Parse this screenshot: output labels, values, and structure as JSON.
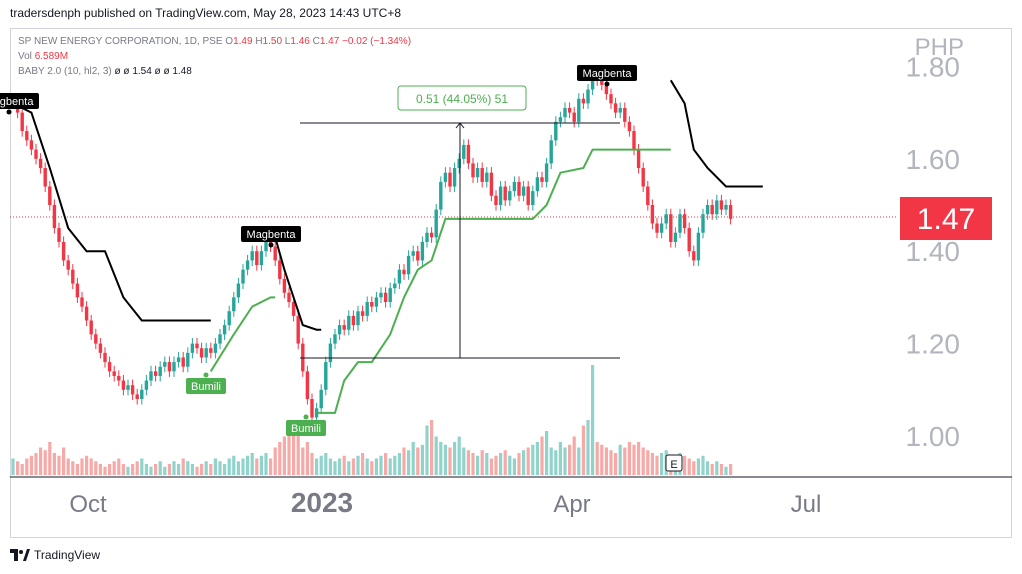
{
  "header": {
    "publisher": "tradersdenph published on TradingView.com, May 28, 2023 14:43 UTC+8"
  },
  "legend": {
    "symbol": "SP NEW ENERGY CORPORATION, 1D, PSE",
    "o_label": "O",
    "o": "1.49",
    "h_label": "H",
    "h": "1.50",
    "l_label": "L",
    "l": "1.46",
    "c_label": "C",
    "c": "1.47",
    "change": "−0.02 (−1.34%)",
    "vol_label": "Vol",
    "vol": "6.589M",
    "indicator": "BABY 2.0 (10, hl2, 3)",
    "ind_vals": "ø ø 1.54 ø ø 1.48"
  },
  "currency": "PHP",
  "footer": {
    "brand": "TradingView"
  },
  "colors": {
    "up": "#26a69a",
    "down": "#f23645",
    "supertrend_down": "#000000",
    "supertrend_up": "#4caf50",
    "price_tag": "#f23645"
  },
  "chart_data": {
    "type": "candlestick",
    "y_ticks": [
      "1.00",
      "1.20",
      "1.40",
      "1.60",
      "1.80"
    ],
    "x_ticks": [
      "Oct",
      "2023",
      "Apr",
      "Jul"
    ],
    "last_price": "1.47",
    "measure_label": "0.51 (44.05%) 51",
    "labels": [
      {
        "text": "Magbenta",
        "type": "sell",
        "bar": 0
      },
      {
        "text": "Magbenta",
        "type": "sell",
        "bar": 57
      },
      {
        "text": "Magbenta",
        "type": "sell",
        "bar": 143
      },
      {
        "text": "Bumili",
        "type": "buy",
        "bar": 43
      },
      {
        "text": "Bumili",
        "type": "buy",
        "bar": 66
      }
    ],
    "volume_flag": "E",
    "close": [
      1.72,
      1.7,
      1.66,
      1.64,
      1.62,
      1.6,
      1.58,
      1.54,
      1.5,
      1.45,
      1.42,
      1.38,
      1.36,
      1.33,
      1.3,
      1.28,
      1.25,
      1.22,
      1.2,
      1.18,
      1.16,
      1.14,
      1.13,
      1.12,
      1.1,
      1.11,
      1.09,
      1.08,
      1.1,
      1.12,
      1.14,
      1.13,
      1.15,
      1.16,
      1.14,
      1.16,
      1.17,
      1.15,
      1.18,
      1.2,
      1.19,
      1.17,
      1.19,
      1.18,
      1.2,
      1.22,
      1.24,
      1.27,
      1.3,
      1.33,
      1.36,
      1.38,
      1.4,
      1.37,
      1.4,
      1.43,
      1.41,
      1.38,
      1.34,
      1.31,
      1.29,
      1.26,
      1.2,
      1.14,
      1.08,
      1.04,
      1.06,
      1.1,
      1.16,
      1.2,
      1.22,
      1.24,
      1.23,
      1.26,
      1.24,
      1.27,
      1.26,
      1.29,
      1.28,
      1.3,
      1.31,
      1.29,
      1.32,
      1.33,
      1.36,
      1.35,
      1.39,
      1.4,
      1.38,
      1.42,
      1.44,
      1.43,
      1.49,
      1.55,
      1.57,
      1.54,
      1.58,
      1.6,
      1.63,
      1.59,
      1.56,
      1.58,
      1.55,
      1.57,
      1.52,
      1.5,
      1.54,
      1.51,
      1.53,
      1.55,
      1.52,
      1.54,
      1.5,
      1.53,
      1.56,
      1.55,
      1.59,
      1.64,
      1.68,
      1.69,
      1.71,
      1.7,
      1.68,
      1.73,
      1.72,
      1.75,
      1.78,
      1.77,
      1.76,
      1.74,
      1.72,
      1.7,
      1.71,
      1.68,
      1.66,
      1.62,
      1.58,
      1.54,
      1.5,
      1.46,
      1.44,
      1.46,
      1.48,
      1.42,
      1.44,
      1.48,
      1.45,
      1.4,
      1.38,
      1.44,
      1.48,
      1.5,
      1.48,
      1.51,
      1.49,
      1.5,
      1.47
    ],
    "volume": [
      0.3,
      0.25,
      0.2,
      0.3,
      0.35,
      0.4,
      0.5,
      0.45,
      0.6,
      0.4,
      0.35,
      0.5,
      0.3,
      0.25,
      0.2,
      0.3,
      0.35,
      0.3,
      0.25,
      0.2,
      0.15,
      0.2,
      0.25,
      0.3,
      0.2,
      0.15,
      0.2,
      0.25,
      0.3,
      0.2,
      0.15,
      0.2,
      0.25,
      0.15,
      0.2,
      0.25,
      0.2,
      0.3,
      0.25,
      0.2,
      0.15,
      0.2,
      0.25,
      0.2,
      0.3,
      0.25,
      0.2,
      0.3,
      0.35,
      0.25,
      0.3,
      0.35,
      0.4,
      0.3,
      0.35,
      0.4,
      0.3,
      0.5,
      0.6,
      0.7,
      0.8,
      0.9,
      1.0,
      0.5,
      0.6,
      0.4,
      0.3,
      0.35,
      0.4,
      0.3,
      0.25,
      0.3,
      0.35,
      0.25,
      0.3,
      0.35,
      0.4,
      0.3,
      0.25,
      0.3,
      0.35,
      0.4,
      0.3,
      0.35,
      0.4,
      0.5,
      0.45,
      0.6,
      0.5,
      0.55,
      0.9,
      1.0,
      0.7,
      0.6,
      0.55,
      0.5,
      0.6,
      0.7,
      0.5,
      0.45,
      0.4,
      0.35,
      0.45,
      0.4,
      0.3,
      0.35,
      0.4,
      0.45,
      0.35,
      0.3,
      0.4,
      0.45,
      0.5,
      0.55,
      0.6,
      0.7,
      0.8,
      0.5,
      0.45,
      0.6,
      0.5,
      0.55,
      0.7,
      0.5,
      0.9,
      1.0,
      2.0,
      0.6,
      0.55,
      0.5,
      0.45,
      0.4,
      0.55,
      0.5,
      0.6,
      0.55,
      0.6,
      0.5,
      0.45,
      0.4,
      0.35,
      0.4,
      0.45,
      0.3,
      0.35,
      0.4,
      0.35,
      0.3,
      0.25,
      0.3,
      0.35,
      0.25,
      0.2,
      0.25,
      0.2,
      0.15,
      0.2
    ]
  }
}
